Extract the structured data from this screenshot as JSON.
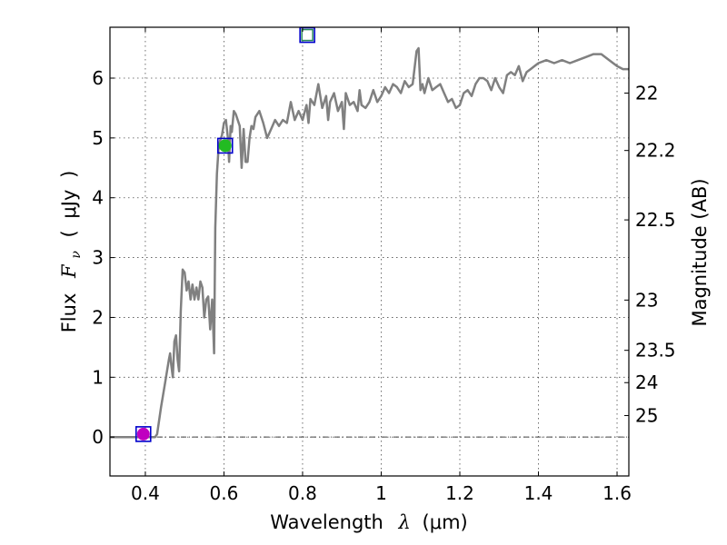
{
  "chart_data": {
    "type": "line",
    "title": "",
    "xlabel": {
      "prefix": "Wavelength",
      "symbol": "λ",
      "unit": "(μm)"
    },
    "ylabel": {
      "prefix": "Flux",
      "symbol": "F",
      "subscript": "ν",
      "unit_open": "(",
      "unit": "μJy",
      "unit_close": ")"
    },
    "ylabel_right": "Magnitude (AB)",
    "xlim": [
      0.31,
      1.63
    ],
    "ylim": [
      -0.65,
      6.85
    ],
    "x_ticks": [
      0.4,
      0.6,
      0.8,
      1.0,
      1.2,
      1.4,
      1.6
    ],
    "x_tick_labels": [
      "0.4",
      "0.6",
      "0.8",
      "1",
      "1.2",
      "1.4",
      "1.6"
    ],
    "y_ticks": [
      0,
      1,
      2,
      3,
      4,
      5,
      6
    ],
    "y_tick_labels": [
      "0",
      "1",
      "2",
      "3",
      "4",
      "5",
      "6"
    ],
    "right_ticks": [
      {
        "label": "22",
        "flux": 5.75
      },
      {
        "label": "22.2",
        "flux": 4.79
      },
      {
        "label": "22.5",
        "flux": 3.63
      },
      {
        "label": "23",
        "flux": 2.29
      },
      {
        "label": "23.5",
        "flux": 1.45
      },
      {
        "label": "24",
        "flux": 0.91
      },
      {
        "label": "25",
        "flux": 0.36
      }
    ],
    "grid": true,
    "zero_line": true,
    "series": [
      {
        "color": "#808080",
        "x": [
          0.31,
          0.35,
          0.38,
          0.4,
          0.415,
          0.425,
          0.43,
          0.44,
          0.45,
          0.46,
          0.463,
          0.466,
          0.47,
          0.474,
          0.478,
          0.482,
          0.486,
          0.49,
          0.495,
          0.5,
          0.505,
          0.51,
          0.515,
          0.52,
          0.525,
          0.53,
          0.535,
          0.54,
          0.545,
          0.55,
          0.555,
          0.56,
          0.565,
          0.57,
          0.575,
          0.578,
          0.582,
          0.586,
          0.59,
          0.595,
          0.6,
          0.605,
          0.61,
          0.613,
          0.617,
          0.62,
          0.625,
          0.63,
          0.64,
          0.645,
          0.65,
          0.655,
          0.66,
          0.665,
          0.67,
          0.675,
          0.68,
          0.69,
          0.7,
          0.71,
          0.72,
          0.73,
          0.74,
          0.75,
          0.76,
          0.77,
          0.78,
          0.79,
          0.8,
          0.81,
          0.815,
          0.82,
          0.83,
          0.84,
          0.85,
          0.86,
          0.865,
          0.87,
          0.88,
          0.89,
          0.9,
          0.905,
          0.91,
          0.92,
          0.93,
          0.94,
          0.945,
          0.95,
          0.96,
          0.97,
          0.98,
          0.99,
          1.0,
          1.01,
          1.02,
          1.03,
          1.04,
          1.05,
          1.06,
          1.07,
          1.08,
          1.09,
          1.095,
          1.1,
          1.105,
          1.11,
          1.12,
          1.13,
          1.14,
          1.15,
          1.16,
          1.17,
          1.18,
          1.19,
          1.2,
          1.21,
          1.22,
          1.23,
          1.24,
          1.25,
          1.26,
          1.27,
          1.28,
          1.29,
          1.3,
          1.31,
          1.32,
          1.33,
          1.34,
          1.35,
          1.36,
          1.37,
          1.38,
          1.39,
          1.4,
          1.42,
          1.44,
          1.46,
          1.48,
          1.5,
          1.52,
          1.54,
          1.56,
          1.58,
          1.6,
          1.615,
          1.63
        ],
        "y": [
          0.0,
          0.0,
          0.0,
          0.0,
          0.0,
          0.0,
          0.05,
          0.5,
          0.9,
          1.3,
          1.4,
          1.2,
          1.0,
          1.6,
          1.7,
          1.3,
          1.1,
          2.1,
          2.8,
          2.75,
          2.45,
          2.6,
          2.3,
          2.55,
          2.3,
          2.5,
          2.3,
          2.6,
          2.5,
          2.0,
          2.3,
          2.35,
          1.8,
          2.3,
          1.4,
          3.5,
          4.4,
          4.8,
          4.95,
          5.05,
          5.25,
          5.3,
          5.0,
          4.6,
          5.2,
          5.1,
          5.45,
          5.4,
          5.2,
          4.5,
          5.15,
          4.6,
          4.6,
          5.0,
          5.2,
          5.15,
          5.35,
          5.45,
          5.25,
          5.0,
          5.15,
          5.3,
          5.2,
          5.3,
          5.25,
          5.6,
          5.3,
          5.45,
          5.3,
          5.55,
          5.25,
          5.65,
          5.55,
          5.9,
          5.5,
          5.7,
          5.3,
          5.6,
          5.75,
          5.45,
          5.6,
          5.15,
          5.75,
          5.55,
          5.6,
          5.45,
          5.8,
          5.55,
          5.5,
          5.6,
          5.8,
          5.6,
          5.7,
          5.85,
          5.75,
          5.9,
          5.85,
          5.75,
          5.95,
          5.85,
          5.9,
          6.45,
          6.5,
          5.8,
          5.9,
          5.75,
          6.0,
          5.8,
          5.85,
          5.9,
          5.75,
          5.6,
          5.65,
          5.5,
          5.55,
          5.75,
          5.8,
          5.7,
          5.9,
          6.0,
          6.0,
          5.95,
          5.8,
          6.0,
          5.85,
          5.75,
          6.05,
          6.1,
          6.05,
          6.2,
          5.95,
          6.1,
          6.15,
          6.2,
          6.25,
          6.3,
          6.25,
          6.3,
          6.25,
          6.3,
          6.35,
          6.4,
          6.4,
          6.3,
          6.2,
          6.15,
          6.15
        ]
      }
    ],
    "points": [
      {
        "x": 0.395,
        "y": 0.05,
        "color": "#c000c0",
        "marker": "circle",
        "box": true
      },
      {
        "x": 0.603,
        "y": 4.87,
        "color": "#22bb22",
        "marker": "circle",
        "box": true
      },
      {
        "x": 0.812,
        "y": 6.72,
        "color": "#ffffff",
        "marker": "square",
        "box": true
      }
    ],
    "box_color": "#0000cc"
  }
}
